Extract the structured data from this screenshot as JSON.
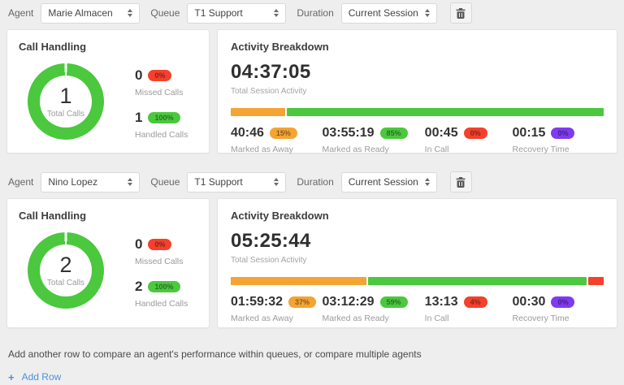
{
  "colors": {
    "green": "#4bc83e",
    "orange": "#f3a433",
    "red": "#f4402c",
    "purple": "#7e3bf0",
    "link_blue": "#4a90e2"
  },
  "labels": {
    "agent": "Agent",
    "queue": "Queue",
    "duration": "Duration",
    "call_handling": "Call Handling",
    "activity_breakdown": "Activity Breakdown",
    "total_session_activity": "Total Session Activity",
    "total_calls": "Total Calls",
    "missed_calls": "Missed Calls",
    "handled_calls": "Handled Calls"
  },
  "footer": {
    "hint": "Add another row to compare an agent's performance within queues, or compare multiple agents",
    "plus": "+",
    "add_row": "Add Row"
  },
  "rows": [
    {
      "agent": "Marie Almacen",
      "queue": "T1 Support",
      "duration": "Current Session",
      "call_handling": {
        "total_calls": "1",
        "missed": {
          "value": "0",
          "pct": "0%"
        },
        "handled": {
          "value": "1",
          "pct": "100%"
        },
        "donut": {
          "handled_pct": 100,
          "missed_pct": 0
        }
      },
      "activity": {
        "total": "04:37:05",
        "bar": [
          {
            "color": "orange",
            "pct": 14.7
          },
          {
            "color": "green",
            "pct": 85.3
          }
        ],
        "stats": [
          {
            "time": "40:46",
            "pct": "15%",
            "label": "Marked as Away",
            "color": "orange"
          },
          {
            "time": "03:55:19",
            "pct": "85%",
            "label": "Marked as Ready",
            "color": "green"
          },
          {
            "time": "00:45",
            "pct": "0%",
            "label": "In Call",
            "color": "red"
          },
          {
            "time": "00:15",
            "pct": "0%",
            "label": "Recovery Time",
            "color": "purple"
          }
        ]
      }
    },
    {
      "agent": "Nino Lopez",
      "queue": "T1 Support",
      "duration": "Current Session",
      "call_handling": {
        "total_calls": "2",
        "missed": {
          "value": "0",
          "pct": "0%"
        },
        "handled": {
          "value": "2",
          "pct": "100%"
        },
        "donut": {
          "handled_pct": 100,
          "missed_pct": 0
        }
      },
      "activity": {
        "total": "05:25:44",
        "bar": [
          {
            "color": "orange",
            "pct": 36.7
          },
          {
            "color": "green",
            "pct": 59.2
          },
          {
            "color": "red",
            "pct": 4.1
          }
        ],
        "stats": [
          {
            "time": "01:59:32",
            "pct": "37%",
            "label": "Marked as Away",
            "color": "orange"
          },
          {
            "time": "03:12:29",
            "pct": "59%",
            "label": "Marked as Ready",
            "color": "green"
          },
          {
            "time": "13:13",
            "pct": "4%",
            "label": "In Call",
            "color": "red"
          },
          {
            "time": "00:30",
            "pct": "0%",
            "label": "Recovery Time",
            "color": "purple"
          }
        ]
      }
    }
  ]
}
